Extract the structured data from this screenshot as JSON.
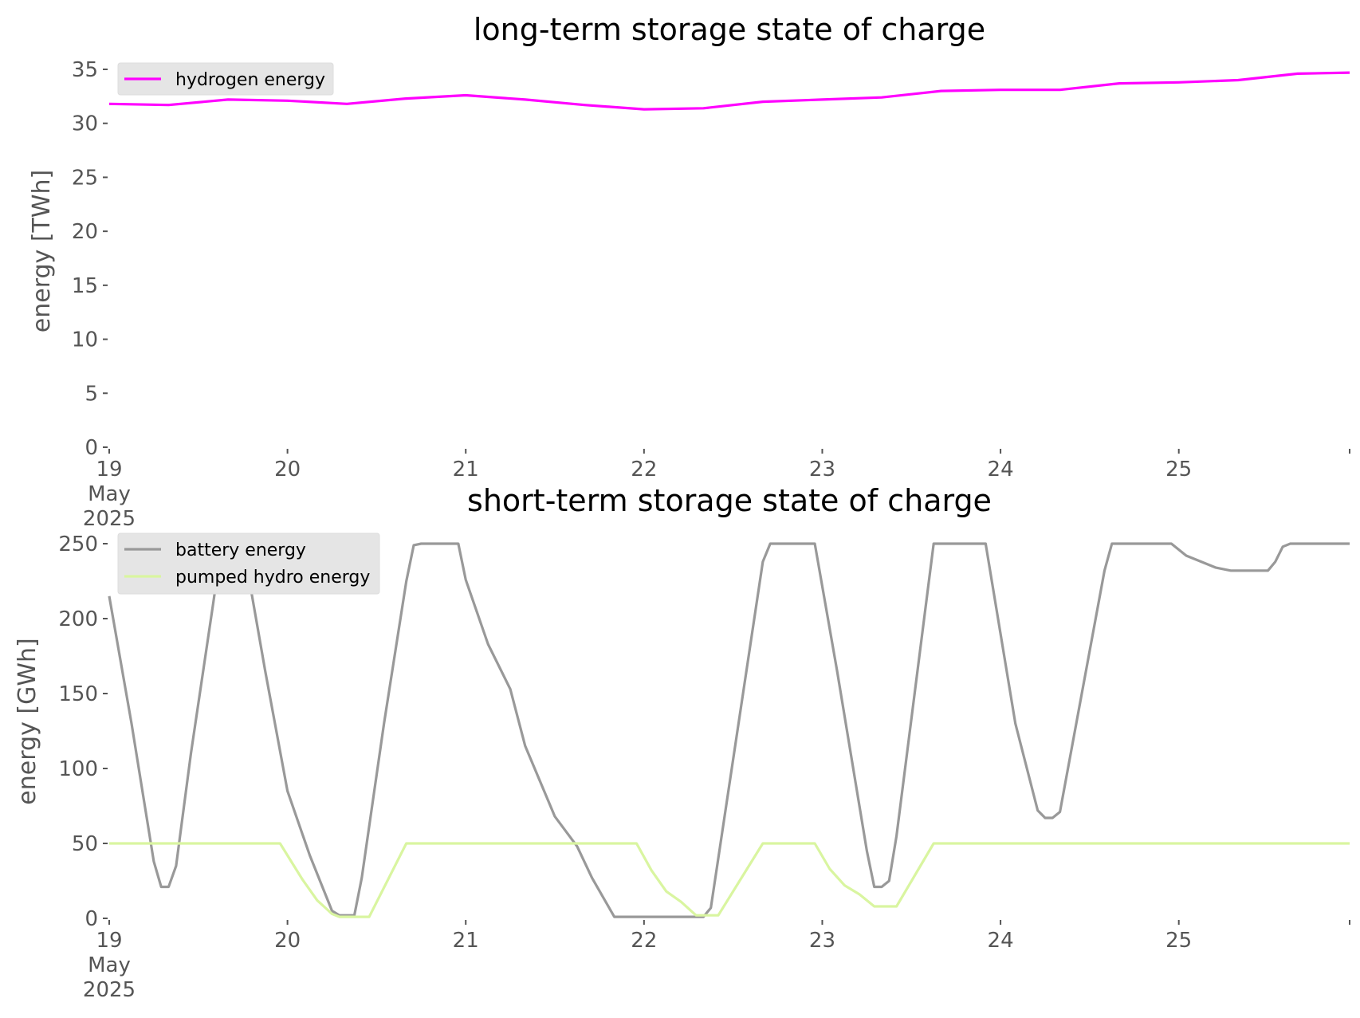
{
  "chart_data": [
    {
      "type": "line",
      "title": "long-term storage state of charge",
      "ylabel": "energy [TWh]",
      "xlabel": "",
      "ylim": [
        0,
        35
      ],
      "yticks": [
        0,
        5,
        10,
        15,
        20,
        25,
        30,
        35
      ],
      "xlim": [
        "2025-05-19 00:00",
        "2025-05-25 23:00"
      ],
      "xticks": [
        {
          "pos": "2025-05-19",
          "label": [
            "19",
            "May",
            "2025"
          ]
        },
        {
          "pos": "2025-05-20",
          "label": [
            "20"
          ]
        },
        {
          "pos": "2025-05-21",
          "label": [
            "21"
          ]
        },
        {
          "pos": "2025-05-22",
          "label": [
            "22"
          ]
        },
        {
          "pos": "2025-05-23",
          "label": [
            "23"
          ]
        },
        {
          "pos": "2025-05-24",
          "label": [
            "24"
          ]
        },
        {
          "pos": "2025-05-25",
          "label": [
            "25"
          ]
        }
      ],
      "grid": false,
      "legend_position": "upper left",
      "series": [
        {
          "name": "hydrogen energy",
          "color": "#ff00ff",
          "points": [
            [
              "2025-05-19 00:00",
              31.8
            ],
            [
              "2025-05-19 08:00",
              31.7
            ],
            [
              "2025-05-19 16:00",
              32.2
            ],
            [
              "2025-05-20 00:00",
              32.1
            ],
            [
              "2025-05-20 08:00",
              31.8
            ],
            [
              "2025-05-20 16:00",
              32.3
            ],
            [
              "2025-05-21 00:00",
              32.6
            ],
            [
              "2025-05-21 08:00",
              32.2
            ],
            [
              "2025-05-21 16:00",
              31.7
            ],
            [
              "2025-05-22 00:00",
              31.3
            ],
            [
              "2025-05-22 08:00",
              31.4
            ],
            [
              "2025-05-22 16:00",
              32.0
            ],
            [
              "2025-05-23 00:00",
              32.2
            ],
            [
              "2025-05-23 08:00",
              32.4
            ],
            [
              "2025-05-23 16:00",
              33.0
            ],
            [
              "2025-05-24 00:00",
              33.1
            ],
            [
              "2025-05-24 08:00",
              33.1
            ],
            [
              "2025-05-24 16:00",
              33.7
            ],
            [
              "2025-05-25 00:00",
              33.8
            ],
            [
              "2025-05-25 08:00",
              34.0
            ],
            [
              "2025-05-25 16:00",
              34.6
            ],
            [
              "2025-05-25 23:00",
              34.7
            ]
          ]
        }
      ]
    },
    {
      "type": "line",
      "title": "short-term storage state of charge",
      "ylabel": "energy [GWh]",
      "xlabel": "",
      "ylim": [
        0,
        250
      ],
      "yticks": [
        0,
        50,
        100,
        150,
        200,
        250
      ],
      "xlim": [
        "2025-05-19 00:00",
        "2025-05-25 23:00"
      ],
      "xticks": [
        {
          "pos": "2025-05-19",
          "label": [
            "19",
            "May",
            "2025"
          ]
        },
        {
          "pos": "2025-05-20",
          "label": [
            "20"
          ]
        },
        {
          "pos": "2025-05-21",
          "label": [
            "21"
          ]
        },
        {
          "pos": "2025-05-22",
          "label": [
            "22"
          ]
        },
        {
          "pos": "2025-05-23",
          "label": [
            "23"
          ]
        },
        {
          "pos": "2025-05-24",
          "label": [
            "24"
          ]
        },
        {
          "pos": "2025-05-25",
          "label": [
            "25"
          ]
        }
      ],
      "grid": false,
      "legend_position": "upper left",
      "series": [
        {
          "name": "battery energy",
          "color": "#999999",
          "points": [
            [
              "2025-05-19 00:00",
              215
            ],
            [
              "2025-05-19 03:00",
              130
            ],
            [
              "2025-05-19 06:00",
              38
            ],
            [
              "2025-05-19 07:00",
              21
            ],
            [
              "2025-05-19 08:00",
              21
            ],
            [
              "2025-05-19 09:00",
              35
            ],
            [
              "2025-05-19 11:00",
              110
            ],
            [
              "2025-05-19 14:00",
              210
            ],
            [
              "2025-05-19 15:00",
              245
            ],
            [
              "2025-05-19 18:00",
              250
            ],
            [
              "2025-05-19 21:00",
              165
            ],
            [
              "2025-05-20 00:00",
              85
            ],
            [
              "2025-05-20 03:00",
              42
            ],
            [
              "2025-05-20 06:00",
              5
            ],
            [
              "2025-05-20 07:00",
              2
            ],
            [
              "2025-05-20 09:00",
              2
            ],
            [
              "2025-05-20 10:00",
              27
            ],
            [
              "2025-05-20 13:00",
              130
            ],
            [
              "2025-05-20 16:00",
              225
            ],
            [
              "2025-05-20 17:00",
              249
            ],
            [
              "2025-05-20 18:00",
              250
            ],
            [
              "2025-05-20 23:00",
              250
            ],
            [
              "2025-05-21 00:00",
              226
            ],
            [
              "2025-05-21 03:00",
              183
            ],
            [
              "2025-05-21 06:00",
              153
            ],
            [
              "2025-05-21 08:00",
              115
            ],
            [
              "2025-05-21 12:00",
              68
            ],
            [
              "2025-05-21 15:00",
              48
            ],
            [
              "2025-05-21 17:00",
              27
            ],
            [
              "2025-05-21 20:00",
              1
            ],
            [
              "2025-05-22 06:00",
              1
            ],
            [
              "2025-05-22 08:00",
              1
            ],
            [
              "2025-05-22 09:00",
              7
            ],
            [
              "2025-05-22 16:00",
              238
            ],
            [
              "2025-05-22 17:00",
              250
            ],
            [
              "2025-05-22 23:00",
              250
            ],
            [
              "2025-05-23 02:00",
              165
            ],
            [
              "2025-05-23 06:00",
              45
            ],
            [
              "2025-05-23 07:00",
              21
            ],
            [
              "2025-05-23 08:00",
              21
            ],
            [
              "2025-05-23 09:00",
              25
            ],
            [
              "2025-05-23 10:00",
              55
            ],
            [
              "2025-05-23 15:00",
              250
            ],
            [
              "2025-05-23 22:00",
              250
            ],
            [
              "2025-05-24 02:00",
              130
            ],
            [
              "2025-05-24 05:00",
              72
            ],
            [
              "2025-05-24 06:00",
              67
            ],
            [
              "2025-05-24 07:00",
              67
            ],
            [
              "2025-05-24 08:00",
              71
            ],
            [
              "2025-05-24 14:00",
              232
            ],
            [
              "2025-05-24 15:00",
              250
            ],
            [
              "2025-05-24 23:00",
              250
            ],
            [
              "2025-05-25 01:00",
              242
            ],
            [
              "2025-05-25 05:00",
              234
            ],
            [
              "2025-05-25 07:00",
              232
            ],
            [
              "2025-05-25 12:00",
              232
            ],
            [
              "2025-05-25 13:00",
              238
            ],
            [
              "2025-05-25 14:00",
              248
            ],
            [
              "2025-05-25 15:00",
              250
            ],
            [
              "2025-05-25 23:00",
              250
            ]
          ]
        },
        {
          "name": "pumped hydro energy",
          "color": "#d9f5a0",
          "points": [
            [
              "2025-05-19 00:00",
              50
            ],
            [
              "2025-05-19 23:00",
              50
            ],
            [
              "2025-05-20 02:00",
              26
            ],
            [
              "2025-05-20 04:00",
              12
            ],
            [
              "2025-05-20 06:00",
              3
            ],
            [
              "2025-05-20 07:00",
              1
            ],
            [
              "2025-05-20 11:00",
              1
            ],
            [
              "2025-05-20 16:00",
              50
            ],
            [
              "2025-05-21 23:00",
              50
            ],
            [
              "2025-05-22 01:00",
              32
            ],
            [
              "2025-05-22 03:00",
              18
            ],
            [
              "2025-05-22 05:00",
              11
            ],
            [
              "2025-05-22 07:00",
              2
            ],
            [
              "2025-05-22 10:00",
              2
            ],
            [
              "2025-05-22 16:00",
              50
            ],
            [
              "2025-05-22 23:00",
              50
            ],
            [
              "2025-05-23 01:00",
              33
            ],
            [
              "2025-05-23 03:00",
              22
            ],
            [
              "2025-05-23 05:00",
              16
            ],
            [
              "2025-05-23 07:00",
              8
            ],
            [
              "2025-05-23 10:00",
              8
            ],
            [
              "2025-05-23 15:00",
              50
            ],
            [
              "2025-05-25 23:00",
              50
            ]
          ]
        }
      ]
    }
  ]
}
